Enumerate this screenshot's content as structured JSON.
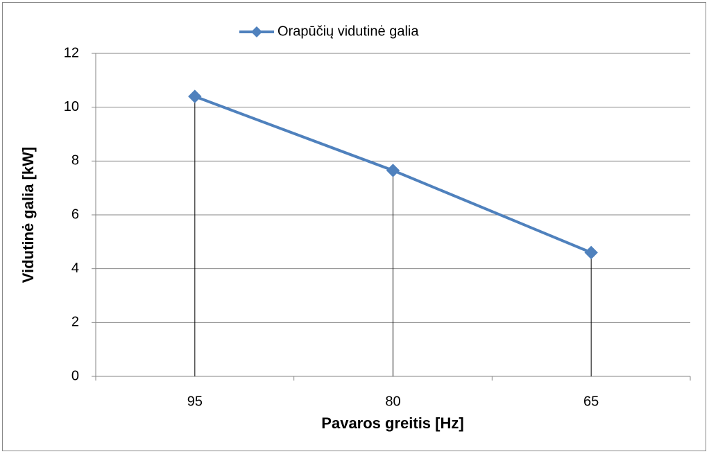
{
  "chart_data": {
    "type": "line",
    "categories": [
      "95",
      "80",
      "65"
    ],
    "series": [
      {
        "name": "Orapūčių vidutinė galia",
        "color": "#4f81bd",
        "values": [
          10.4,
          7.65,
          4.6
        ]
      }
    ],
    "xlabel": "Pavaros greitis [Hz]",
    "ylabel": "Vidutinė galia [kW]",
    "ylim": [
      0,
      12
    ],
    "yticks": [
      0,
      2,
      4,
      6,
      8,
      10,
      12
    ],
    "grid": true,
    "drop_lines": true,
    "legend": "top"
  }
}
